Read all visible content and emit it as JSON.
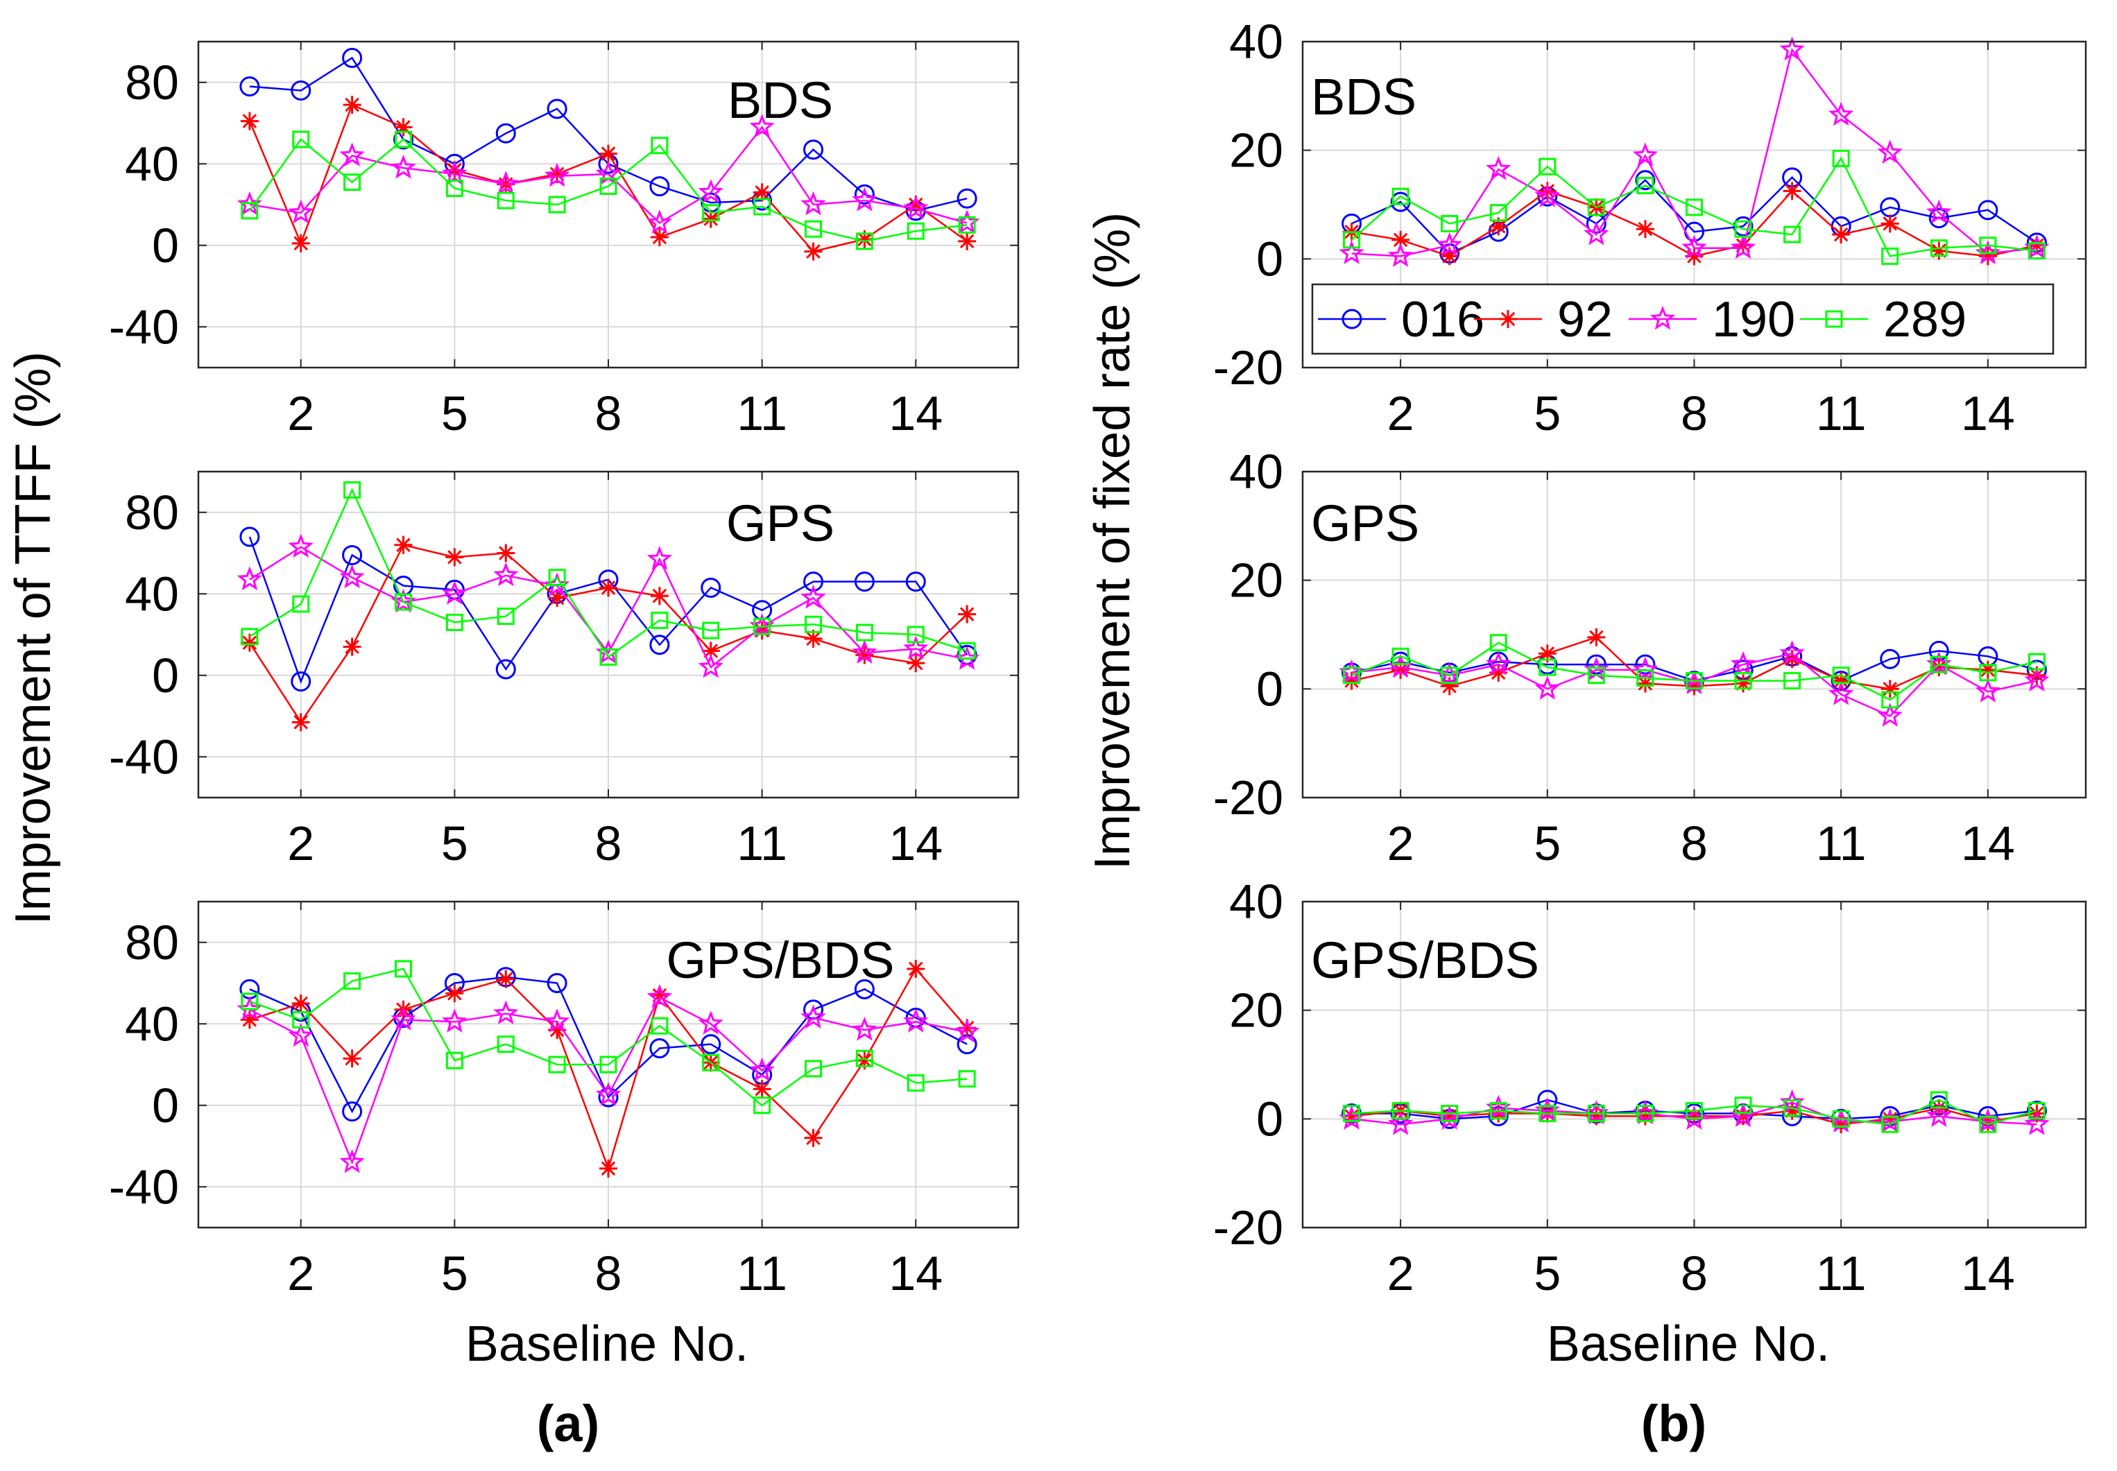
{
  "figure": {
    "panel_labels": [
      "(a)",
      "(b)"
    ],
    "xlabel": "Baseline No.",
    "legend_position": "top-right-inside (panel b, BDS)"
  },
  "series_meta": [
    {
      "name": "016",
      "color": "#0000ff",
      "marker": "circle"
    },
    {
      "name": "92",
      "color": "#ff0000",
      "marker": "asterisk"
    },
    {
      "name": "190",
      "color": "#ff00ff",
      "marker": "star"
    },
    {
      "name": "289",
      "color": "#00ff00",
      "marker": "square"
    }
  ],
  "chart_data": [
    {
      "type": "line",
      "panel": "a",
      "title": "BDS",
      "ylabel": "Improvement of TTFF (%)",
      "xlabel": "",
      "x": [
        1,
        2,
        3,
        4,
        5,
        6,
        7,
        8,
        9,
        10,
        11,
        12,
        13,
        14,
        15
      ],
      "xlim": [
        0,
        16
      ],
      "xticks": [
        2,
        5,
        8,
        11,
        14
      ],
      "ylim": [
        -60,
        100
      ],
      "yticks": [
        -40,
        0,
        40,
        80
      ],
      "grid": true,
      "series": [
        {
          "name": "016",
          "values": [
            78,
            76,
            92,
            52,
            40,
            55,
            67,
            40,
            29,
            21,
            22,
            47,
            25,
            17,
            23
          ]
        },
        {
          "name": "92",
          "values": [
            61,
            1,
            69,
            58,
            37,
            30,
            35,
            45,
            4,
            13,
            26,
            -3,
            3,
            20,
            2
          ]
        },
        {
          "name": "190",
          "values": [
            20,
            16,
            44,
            38,
            35,
            30,
            34,
            35,
            11,
            26,
            58,
            20,
            22,
            18,
            11
          ]
        },
        {
          "name": "289",
          "values": [
            17,
            52,
            31,
            52,
            28,
            22,
            20,
            29,
            49,
            16,
            19,
            8,
            2,
            7,
            10
          ]
        }
      ]
    },
    {
      "type": "line",
      "panel": "a",
      "title": "GPS",
      "ylabel": "Improvement of TTFF (%)",
      "xlabel": "",
      "x": [
        1,
        2,
        3,
        4,
        5,
        6,
        7,
        8,
        9,
        10,
        11,
        12,
        13,
        14,
        15
      ],
      "xlim": [
        0,
        16
      ],
      "xticks": [
        2,
        5,
        8,
        11,
        14
      ],
      "ylim": [
        -60,
        100
      ],
      "yticks": [
        -40,
        0,
        40,
        80
      ],
      "grid": true,
      "series": [
        {
          "name": "016",
          "values": [
            68,
            -3,
            59,
            44,
            42,
            3,
            40,
            47,
            15,
            43,
            32,
            46,
            46,
            46,
            10
          ]
        },
        {
          "name": "92",
          "values": [
            16,
            -23,
            14,
            64,
            58,
            60,
            38,
            43,
            39,
            12,
            22,
            18,
            10,
            6,
            30
          ]
        },
        {
          "name": "190",
          "values": [
            47,
            63,
            48,
            36,
            40,
            49,
            44,
            11,
            57,
            4,
            24,
            38,
            11,
            13,
            8
          ]
        },
        {
          "name": "289",
          "values": [
            19,
            35,
            91,
            36,
            26,
            29,
            48,
            9,
            27,
            22,
            24,
            25,
            21,
            20,
            12
          ]
        }
      ]
    },
    {
      "type": "line",
      "panel": "a",
      "title": "GPS/BDS",
      "ylabel": "Improvement of TTFF (%)",
      "xlabel": "Baseline No.",
      "x": [
        1,
        2,
        3,
        4,
        5,
        6,
        7,
        8,
        9,
        10,
        11,
        12,
        13,
        14,
        15
      ],
      "xlim": [
        0,
        16
      ],
      "xticks": [
        2,
        5,
        8,
        11,
        14
      ],
      "ylim": [
        -60,
        100
      ],
      "yticks": [
        -40,
        0,
        40,
        80
      ],
      "grid": true,
      "series": [
        {
          "name": "016",
          "values": [
            57,
            46,
            -3,
            43,
            60,
            63,
            60,
            4,
            28,
            30,
            15,
            47,
            57,
            43,
            30
          ]
        },
        {
          "name": "92",
          "values": [
            42,
            50,
            23,
            47,
            55,
            62,
            37,
            -31,
            54,
            21,
            8,
            -16,
            22,
            67,
            38
          ]
        },
        {
          "name": "190",
          "values": [
            47,
            34,
            -28,
            42,
            41,
            45,
            41,
            5,
            53,
            40,
            17,
            43,
            37,
            41,
            36
          ]
        },
        {
          "name": "289",
          "values": [
            51,
            42,
            61,
            67,
            22,
            30,
            20,
            20,
            39,
            21,
            0,
            18,
            23,
            11,
            13
          ]
        }
      ]
    },
    {
      "type": "line",
      "panel": "b",
      "title": "BDS",
      "ylabel": "Improvement of fixed rate (%)",
      "xlabel": "",
      "x": [
        1,
        2,
        3,
        4,
        5,
        6,
        7,
        8,
        9,
        10,
        11,
        12,
        13,
        14,
        15
      ],
      "xlim": [
        0,
        16
      ],
      "xticks": [
        2,
        5,
        8,
        11,
        14
      ],
      "ylim": [
        -20,
        40
      ],
      "yticks": [
        -20,
        0,
        20,
        40
      ],
      "grid": true,
      "series": [
        {
          "name": "016",
          "values": [
            6.5,
            10.5,
            1,
            5,
            11.5,
            6.5,
            14.5,
            5,
            6,
            15,
            6,
            9.5,
            7.5,
            9,
            3
          ]
        },
        {
          "name": "92",
          "values": [
            5,
            3.5,
            0.5,
            6,
            12.5,
            9.5,
            5.5,
            0.5,
            2.5,
            12.5,
            4.5,
            6.5,
            1.5,
            0.5,
            2.5
          ]
        },
        {
          "name": "190",
          "values": [
            1,
            0.5,
            2.5,
            16.5,
            11.5,
            4.5,
            19,
            2,
            2,
            38.5,
            26.5,
            19.5,
            8.5,
            1,
            2
          ]
        },
        {
          "name": "289",
          "values": [
            3.5,
            11.5,
            6.5,
            8.5,
            17,
            9.5,
            13.5,
            9.5,
            5.5,
            4.5,
            18.5,
            0.5,
            2,
            2.5,
            1.5
          ]
        }
      ]
    },
    {
      "type": "line",
      "panel": "b",
      "title": "GPS",
      "ylabel": "Improvement of fixed rate (%)",
      "xlabel": "",
      "x": [
        1,
        2,
        3,
        4,
        5,
        6,
        7,
        8,
        9,
        10,
        11,
        12,
        13,
        14,
        15
      ],
      "xlim": [
        0,
        16
      ],
      "xticks": [
        2,
        5,
        8,
        11,
        14
      ],
      "ylim": [
        -20,
        40
      ],
      "yticks": [
        -20,
        0,
        20,
        40
      ],
      "grid": true,
      "series": [
        {
          "name": "016",
          "values": [
            3,
            5,
            3,
            5,
            4.5,
            4.5,
            4.5,
            1.5,
            3.5,
            6,
            1.5,
            5.5,
            7,
            6,
            3.5
          ]
        },
        {
          "name": "92",
          "values": [
            1.5,
            3.5,
            0.5,
            3,
            6.5,
            9.5,
            1,
            0.5,
            1,
            5.5,
            1.5,
            0,
            4,
            3.5,
            2.5
          ]
        },
        {
          "name": "190",
          "values": [
            3,
            4,
            2.5,
            4.5,
            0,
            3.5,
            3.5,
            1,
            4.5,
            6.5,
            -1,
            -5,
            4.5,
            -0.5,
            1.5
          ]
        },
        {
          "name": "289",
          "values": [
            2.5,
            6,
            2.5,
            8.5,
            4,
            2.5,
            2,
            1.5,
            1.5,
            1.5,
            2.5,
            -2,
            4.5,
            3,
            5
          ]
        }
      ]
    },
    {
      "type": "line",
      "panel": "b",
      "title": "GPS/BDS",
      "ylabel": "Improvement of fixed rate (%)",
      "xlabel": "Baseline No.",
      "x": [
        1,
        2,
        3,
        4,
        5,
        6,
        7,
        8,
        9,
        10,
        11,
        12,
        13,
        14,
        15
      ],
      "xlim": [
        0,
        16
      ],
      "xticks": [
        2,
        5,
        8,
        11,
        14
      ],
      "ylim": [
        -20,
        40
      ],
      "yticks": [
        -20,
        0,
        20,
        40
      ],
      "grid": true,
      "series": [
        {
          "name": "016",
          "values": [
            1,
            1,
            0,
            0.5,
            3.5,
            1,
            1.5,
            1,
            1,
            0.5,
            0,
            0.5,
            2.5,
            0.5,
            1.5
          ]
        },
        {
          "name": "92",
          "values": [
            0.5,
            1.5,
            0.5,
            1,
            1,
            0.5,
            0.5,
            0.5,
            0.5,
            1.5,
            -1,
            0,
            2,
            -0.5,
            1
          ]
        },
        {
          "name": "190",
          "values": [
            0,
            -1,
            0,
            2,
            1.5,
            1,
            1,
            0,
            0.5,
            3,
            -0.5,
            -0.5,
            0.5,
            -0.5,
            -1
          ]
        },
        {
          "name": "289",
          "values": [
            1,
            1.5,
            1,
            1.5,
            1,
            1,
            1,
            1.5,
            2.5,
            2,
            0,
            -1,
            3.5,
            -1,
            1.5
          ]
        }
      ]
    }
  ]
}
